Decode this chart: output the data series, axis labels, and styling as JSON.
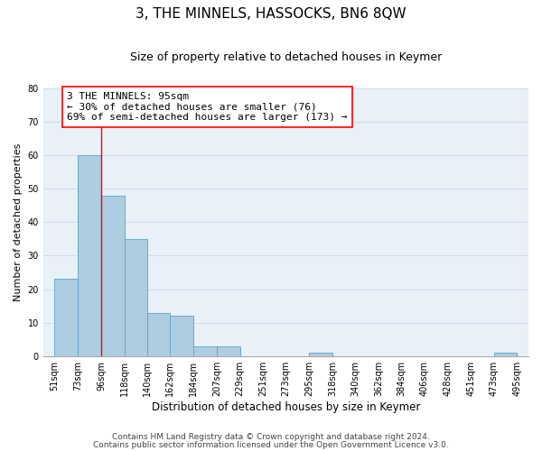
{
  "title": "3, THE MINNELS, HASSOCKS, BN6 8QW",
  "subtitle": "Size of property relative to detached houses in Keymer",
  "xlabel": "Distribution of detached houses by size in Keymer",
  "ylabel": "Number of detached properties",
  "bar_left_edges": [
    51,
    73,
    96,
    118,
    140,
    162,
    184,
    207,
    229,
    251,
    273,
    295,
    318,
    340,
    362,
    384,
    406,
    428,
    451,
    473
  ],
  "bar_heights": [
    23,
    60,
    48,
    35,
    13,
    12,
    3,
    3,
    0,
    0,
    0,
    1,
    0,
    0,
    0,
    0,
    0,
    0,
    0,
    1
  ],
  "bar_widths": [
    22,
    23,
    22,
    22,
    22,
    22,
    23,
    22,
    22,
    22,
    22,
    23,
    22,
    22,
    22,
    22,
    22,
    23,
    22,
    22
  ],
  "bar_color": "#aecde1",
  "bar_edge_color": "#5ba3c9",
  "x_tick_labels": [
    "51sqm",
    "73sqm",
    "96sqm",
    "118sqm",
    "140sqm",
    "162sqm",
    "184sqm",
    "207sqm",
    "229sqm",
    "251sqm",
    "273sqm",
    "295sqm",
    "318sqm",
    "340sqm",
    "362sqm",
    "384sqm",
    "406sqm",
    "428sqm",
    "451sqm",
    "473sqm",
    "495sqm"
  ],
  "x_tick_positions": [
    51,
    73,
    96,
    118,
    140,
    162,
    184,
    207,
    229,
    251,
    273,
    295,
    318,
    340,
    362,
    384,
    406,
    428,
    451,
    473,
    495
  ],
  "ylim": [
    0,
    80
  ],
  "xlim": [
    40,
    506
  ],
  "red_line_x": 96,
  "annotation_text": "3 THE MINNELS: 95sqm\n← 30% of detached houses are smaller (76)\n69% of semi-detached houses are larger (173) →",
  "yticks": [
    0,
    10,
    20,
    30,
    40,
    50,
    60,
    70,
    80
  ],
  "grid_color": "#d0dce8",
  "bg_color": "#e8f0f8",
  "footer_line1": "Contains HM Land Registry data © Crown copyright and database right 2024.",
  "footer_line2": "Contains public sector information licensed under the Open Government Licence v3.0.",
  "title_fontsize": 11,
  "subtitle_fontsize": 9,
  "annotation_fontsize": 8,
  "footer_fontsize": 6.5,
  "xlabel_fontsize": 8.5,
  "ylabel_fontsize": 8,
  "tick_fontsize": 7
}
